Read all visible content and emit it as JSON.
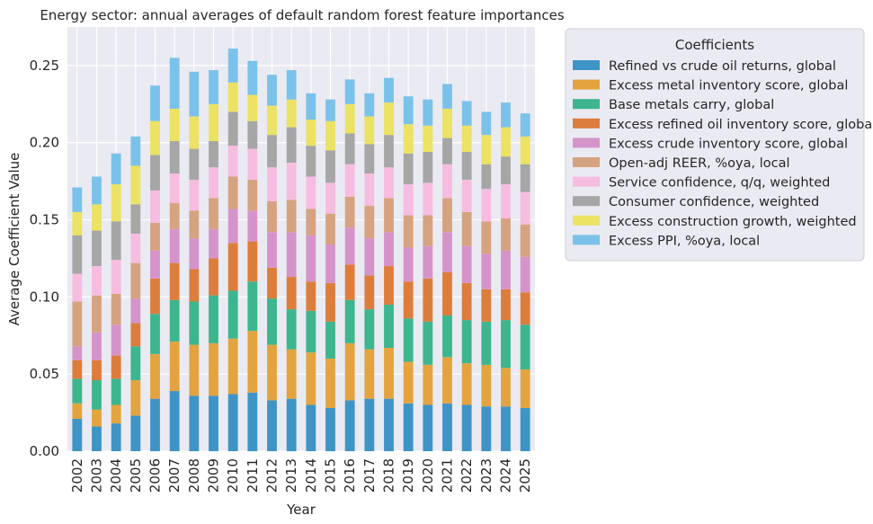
{
  "chart_data": {
    "type": "bar",
    "stacked": true,
    "title": "Energy sector: annual averages of default random forest feature importances",
    "xlabel": "Year",
    "ylabel": "Average Coefficient Value",
    "ylim": [
      0,
      0.275
    ],
    "yticks": [
      0.0,
      0.05,
      0.1,
      0.15,
      0.2,
      0.25
    ],
    "ytick_labels": [
      "0.00",
      "0.05",
      "0.10",
      "0.15",
      "0.20",
      "0.25"
    ],
    "grid": true,
    "legend_title": "Coefficients",
    "legend_position": "upper-right-outside",
    "categories": [
      "2002",
      "2003",
      "2004",
      "2005",
      "2006",
      "2007",
      "2008",
      "2009",
      "2010",
      "2011",
      "2012",
      "2013",
      "2014",
      "2015",
      "2016",
      "2017",
      "2018",
      "2019",
      "2020",
      "2021",
      "2022",
      "2023",
      "2024",
      "2025"
    ],
    "series": [
      {
        "name": "Refined vs crude oil returns, global",
        "color": "#3f94c6",
        "values": [
          0.021,
          0.016,
          0.018,
          0.023,
          0.034,
          0.039,
          0.036,
          0.036,
          0.037,
          0.038,
          0.033,
          0.034,
          0.03,
          0.028,
          0.033,
          0.034,
          0.034,
          0.031,
          0.03,
          0.031,
          0.03,
          0.029,
          0.029,
          0.028
        ]
      },
      {
        "name": "Excess metal inventory score, global",
        "color": "#e3a43f",
        "values": [
          0.01,
          0.011,
          0.012,
          0.023,
          0.029,
          0.032,
          0.033,
          0.034,
          0.036,
          0.04,
          0.036,
          0.032,
          0.034,
          0.032,
          0.037,
          0.032,
          0.033,
          0.027,
          0.026,
          0.03,
          0.027,
          0.027,
          0.025,
          0.025
        ]
      },
      {
        "name": "Base metals carry, global",
        "color": "#3db58e",
        "values": [
          0.016,
          0.019,
          0.017,
          0.022,
          0.026,
          0.027,
          0.028,
          0.031,
          0.031,
          0.032,
          0.03,
          0.026,
          0.027,
          0.024,
          0.028,
          0.026,
          0.028,
          0.028,
          0.028,
          0.027,
          0.028,
          0.028,
          0.031,
          0.029
        ]
      },
      {
        "name": "Excess refined oil inventory score, global",
        "color": "#dd7d3c",
        "values": [
          0.012,
          0.013,
          0.015,
          0.015,
          0.023,
          0.024,
          0.021,
          0.024,
          0.031,
          0.026,
          0.02,
          0.021,
          0.019,
          0.025,
          0.023,
          0.022,
          0.025,
          0.024,
          0.028,
          0.028,
          0.024,
          0.021,
          0.02,
          0.021
        ]
      },
      {
        "name": "Excess crude inventory score, global",
        "color": "#d594c9",
        "values": [
          0.009,
          0.018,
          0.02,
          0.016,
          0.018,
          0.022,
          0.02,
          0.019,
          0.022,
          0.02,
          0.023,
          0.029,
          0.03,
          0.025,
          0.024,
          0.024,
          0.022,
          0.022,
          0.021,
          0.026,
          0.024,
          0.023,
          0.025,
          0.023
        ]
      },
      {
        "name": "Open-adj REER, %oya, local",
        "color": "#d6a380",
        "values": [
          0.029,
          0.024,
          0.02,
          0.023,
          0.018,
          0.017,
          0.018,
          0.02,
          0.021,
          0.02,
          0.02,
          0.021,
          0.017,
          0.02,
          0.02,
          0.021,
          0.022,
          0.021,
          0.02,
          0.022,
          0.022,
          0.021,
          0.021,
          0.021
        ]
      },
      {
        "name": "Service confidence, q/q, weighted",
        "color": "#f7bde0",
        "values": [
          0.018,
          0.019,
          0.022,
          0.019,
          0.021,
          0.019,
          0.02,
          0.02,
          0.02,
          0.02,
          0.022,
          0.024,
          0.021,
          0.02,
          0.021,
          0.021,
          0.02,
          0.02,
          0.021,
          0.022,
          0.021,
          0.021,
          0.022,
          0.021
        ]
      },
      {
        "name": "Consumer confidence, weighted",
        "color": "#a6a6a6",
        "values": [
          0.025,
          0.023,
          0.025,
          0.019,
          0.023,
          0.021,
          0.02,
          0.017,
          0.022,
          0.018,
          0.021,
          0.023,
          0.02,
          0.021,
          0.02,
          0.019,
          0.021,
          0.02,
          0.02,
          0.017,
          0.018,
          0.016,
          0.018,
          0.018
        ]
      },
      {
        "name": "Excess construction growth, weighted",
        "color": "#ece263",
        "values": [
          0.015,
          0.017,
          0.024,
          0.025,
          0.022,
          0.021,
          0.021,
          0.024,
          0.019,
          0.017,
          0.019,
          0.018,
          0.017,
          0.019,
          0.019,
          0.018,
          0.021,
          0.019,
          0.017,
          0.019,
          0.017,
          0.019,
          0.019,
          0.018
        ]
      },
      {
        "name": "Excess PPI, %oya, local",
        "color": "#7bc2ea",
        "values": [
          0.016,
          0.018,
          0.02,
          0.019,
          0.023,
          0.033,
          0.029,
          0.022,
          0.022,
          0.022,
          0.02,
          0.019,
          0.017,
          0.014,
          0.016,
          0.015,
          0.016,
          0.018,
          0.017,
          0.016,
          0.016,
          0.015,
          0.016,
          0.015
        ]
      }
    ]
  }
}
